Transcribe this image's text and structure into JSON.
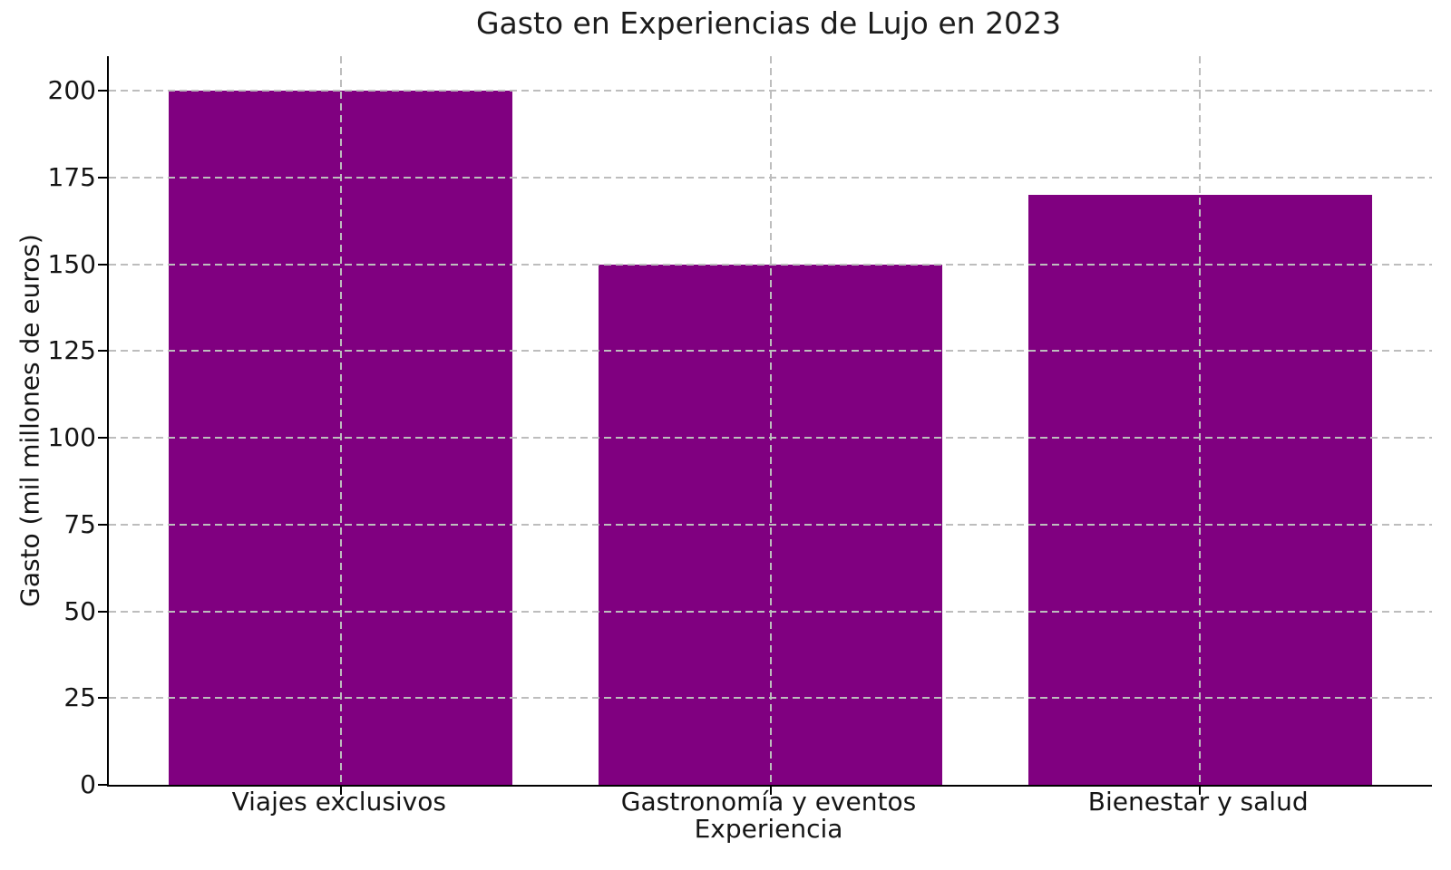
{
  "chart_data": {
    "type": "bar",
    "title": "Gasto en Experiencias de Lujo en 2023",
    "xlabel": "Experiencia",
    "ylabel": "Gasto (mil millones de euros)",
    "categories": [
      "Viajes exclusivos",
      "Gastronomía y eventos",
      "Bienestar y salud"
    ],
    "values": [
      200,
      150,
      170
    ],
    "yticks": [
      0,
      25,
      50,
      75,
      100,
      125,
      150,
      175,
      200
    ],
    "ylim": [
      0,
      210
    ],
    "bar_color": "#800080",
    "grid": true,
    "grid_style": "dashed",
    "grid_color": "#bdbdbd",
    "grid_above_bars": true,
    "legend_position": "none"
  }
}
